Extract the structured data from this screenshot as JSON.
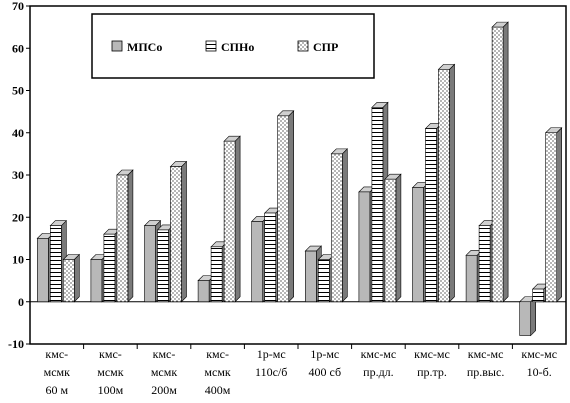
{
  "chart_data": {
    "type": "bar",
    "title": "",
    "xlabel": "",
    "ylabel": "",
    "ylim": [
      -10,
      70
    ],
    "yticks": [
      -10,
      0,
      10,
      20,
      30,
      40,
      50,
      60,
      70
    ],
    "grid": false,
    "legend_position": "top-center",
    "style": "3d-bars",
    "categories": [
      [
        "кмс-",
        "мсмк",
        "60 м"
      ],
      [
        "кмс-",
        "мсмк",
        "100м"
      ],
      [
        "кмс-",
        "мсмк",
        "200м"
      ],
      [
        "кмс-",
        "мсмк",
        "400м"
      ],
      [
        "1р-мс",
        "110с/б"
      ],
      [
        "1р-мс",
        "400 сб"
      ],
      [
        "кмс-мс",
        "пр.дл."
      ],
      [
        "кмс-мс",
        "пр.тр."
      ],
      [
        "кмс-мс",
        "пр.выс."
      ],
      [
        "кмс-мс",
        "10-б."
      ]
    ],
    "series": [
      {
        "name": "МПСо",
        "pattern": "solid-gray",
        "values": [
          15,
          10,
          18,
          5,
          19,
          12,
          26,
          27,
          11,
          -8
        ]
      },
      {
        "name": "СПНо",
        "pattern": "horizontal-lines",
        "values": [
          18,
          16,
          17,
          13,
          21,
          10,
          46,
          41,
          18,
          3
        ]
      },
      {
        "name": "СПР",
        "pattern": "dots",
        "values": [
          10,
          30,
          32,
          38,
          44,
          35,
          29,
          55,
          65,
          40
        ]
      }
    ]
  }
}
